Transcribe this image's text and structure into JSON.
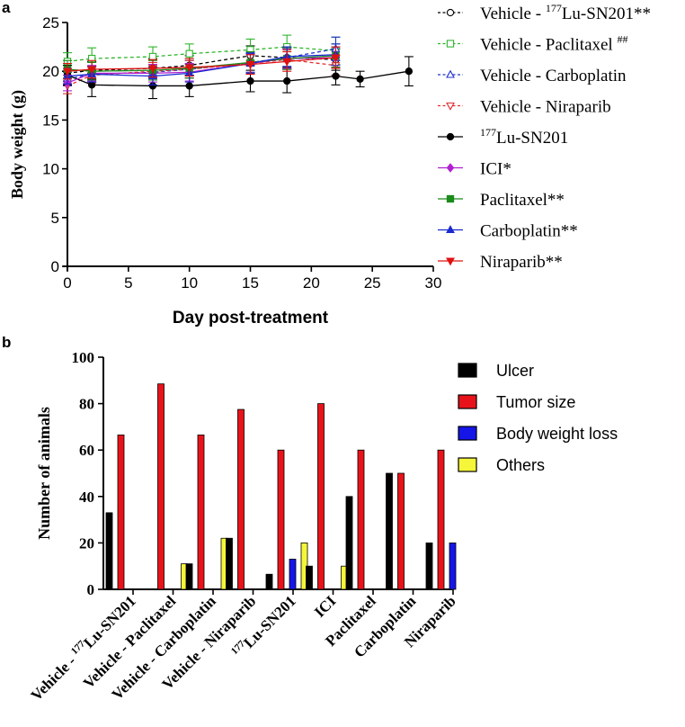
{
  "panel_a_label": "a",
  "panel_b_label": "b",
  "chart_data": [
    {
      "type": "line",
      "title": "",
      "xlabel": "Day post-treatment",
      "ylabel": "Body weight (g)",
      "xlim": [
        0,
        30
      ],
      "ylim": [
        0,
        25
      ],
      "xticks": [
        0,
        5,
        10,
        15,
        20,
        25,
        30
      ],
      "yticks": [
        0,
        5,
        10,
        15,
        20,
        25
      ],
      "grid": false,
      "legend_position": "right",
      "series": [
        {
          "name": "Vehicle - ",
          "sup": "177",
          "name_tail": "Lu-SN201**",
          "color": "#000000",
          "dashed": true,
          "marker": "circle-open",
          "x": [
            0,
            2,
            7,
            10,
            15,
            18,
            22
          ],
          "y": [
            19.8,
            20.1,
            20.3,
            20.6,
            21.6,
            21.4,
            21.2
          ],
          "err": [
            0.8,
            0.9,
            1.0,
            1.0,
            1.0,
            1.0,
            1.1
          ]
        },
        {
          "name": "Vehicle - Paclitaxel ",
          "sup": "##",
          "name_tail": "",
          "color": "#2db52d",
          "dashed": true,
          "marker": "square-open",
          "x": [
            0,
            2,
            7,
            10,
            15,
            18,
            22
          ],
          "y": [
            21.0,
            21.3,
            21.5,
            21.8,
            22.2,
            22.5,
            22.1
          ],
          "err": [
            0.9,
            1.1,
            1.0,
            1.0,
            1.1,
            1.2,
            1.4
          ]
        },
        {
          "name": "Vehicle - Carboplatin",
          "sup": "",
          "name_tail": "",
          "color": "#2233cc",
          "dashed": true,
          "marker": "triangle-open",
          "x": [
            0,
            2,
            7,
            10,
            15,
            18,
            22
          ],
          "y": [
            19.2,
            19.7,
            19.9,
            20.2,
            20.9,
            21.4,
            22.3
          ],
          "err": [
            0.7,
            0.8,
            0.8,
            0.9,
            1.0,
            1.1,
            1.2
          ]
        },
        {
          "name": "Vehicle - Niraparib",
          "sup": "",
          "name_tail": "",
          "color": "#e03030",
          "dashed": true,
          "marker": "triangle-down-open",
          "x": [
            0,
            2,
            7,
            10,
            15,
            18,
            22
          ],
          "y": [
            18.5,
            19.6,
            20.0,
            20.2,
            20.8,
            21.2,
            20.6
          ],
          "err": [
            0.8,
            0.8,
            0.9,
            0.9,
            1.0,
            1.0,
            1.0
          ]
        },
        {
          "name": "",
          "sup": "177",
          "name_tail": "Lu-SN201",
          "color": "#000000",
          "dashed": false,
          "marker": "circle",
          "x": [
            0,
            2,
            7,
            10,
            15,
            18,
            22,
            24,
            28
          ],
          "y": [
            19.6,
            18.6,
            18.5,
            18.5,
            19.0,
            19.0,
            19.5,
            19.2,
            20.0
          ],
          "err": [
            1.0,
            1.2,
            1.3,
            1.1,
            1.1,
            1.2,
            0.9,
            0.8,
            1.5
          ]
        },
        {
          "name": "ICI*",
          "sup": "",
          "name_tail": "",
          "color": "#b020d0",
          "dashed": false,
          "marker": "diamond",
          "x": [
            0,
            2,
            7,
            10,
            15,
            18,
            22
          ],
          "y": [
            18.8,
            19.8,
            19.8,
            19.9,
            20.8,
            21.3,
            21.4
          ],
          "err": [
            0.8,
            0.8,
            0.9,
            0.9,
            1.0,
            1.0,
            1.1
          ]
        },
        {
          "name": "Paclitaxel**",
          "sup": "",
          "name_tail": "",
          "color": "#1a8a1a",
          "dashed": false,
          "marker": "square",
          "x": [
            0,
            2,
            7,
            10,
            15,
            18,
            22
          ],
          "y": [
            20.2,
            20.0,
            20.1,
            20.3,
            20.9,
            21.3,
            21.6
          ],
          "err": [
            0.9,
            0.9,
            1.0,
            1.0,
            1.1,
            1.1,
            1.2
          ]
        },
        {
          "name": "Carboplatin**",
          "sup": "",
          "name_tail": "",
          "color": "#1a2ad0",
          "dashed": false,
          "marker": "triangle",
          "x": [
            0,
            2,
            7,
            10,
            15,
            18,
            22
          ],
          "y": [
            19.5,
            19.7,
            19.5,
            19.8,
            20.8,
            21.5,
            21.7
          ],
          "err": [
            0.8,
            0.8,
            0.9,
            0.9,
            1.0,
            1.0,
            1.1
          ]
        },
        {
          "name": "Niraparib**",
          "sup": "",
          "name_tail": "",
          "color": "#e01010",
          "dashed": false,
          "marker": "triangle-down",
          "x": [
            0,
            2,
            7,
            10,
            15,
            18,
            22
          ],
          "y": [
            20.0,
            20.2,
            20.3,
            20.4,
            20.7,
            21.0,
            21.4
          ],
          "err": [
            0.8,
            0.9,
            0.9,
            0.9,
            1.0,
            1.0,
            1.1
          ]
        }
      ]
    },
    {
      "type": "bar",
      "title": "",
      "xlabel": "",
      "ylabel": "Number of animals",
      "ylim": [
        0,
        100
      ],
      "yticks": [
        0,
        20,
        40,
        60,
        80,
        100
      ],
      "grid": false,
      "legend_position": "right",
      "categories": [
        {
          "pre": "Vehicle - ",
          "sup": "177",
          "post": "Lu-SN201"
        },
        {
          "pre": "Vehicle - Paclitaxel",
          "sup": "",
          "post": ""
        },
        {
          "pre": "Vehicle - Carboplatin",
          "sup": "",
          "post": ""
        },
        {
          "pre": "Vehicle - Niraparib",
          "sup": "",
          "post": ""
        },
        {
          "pre": "",
          "sup": "177",
          "post": "Lu-SN201"
        },
        {
          "pre": "ICI",
          "sup": "",
          "post": ""
        },
        {
          "pre": "Paclitaxel",
          "sup": "",
          "post": ""
        },
        {
          "pre": "Carboplatin",
          "sup": "",
          "post": ""
        },
        {
          "pre": "Niraparib",
          "sup": "",
          "post": ""
        }
      ],
      "series": [
        {
          "name": "Ulcer",
          "color": "#000000",
          "values": [
            33,
            0,
            11,
            22,
            6.5,
            10,
            40,
            50,
            20
          ]
        },
        {
          "name": "Tumor size",
          "color": "#e8131a",
          "values": [
            66.5,
            88.5,
            66.5,
            77.5,
            60,
            80,
            60,
            50,
            60
          ]
        },
        {
          "name": "Body weight loss",
          "color": "#1515e8",
          "values": [
            0,
            0,
            0,
            0,
            13,
            0,
            0,
            0,
            20
          ]
        },
        {
          "name": "Others",
          "color": "#f5f53a",
          "values": [
            0,
            11,
            22,
            0,
            20,
            10,
            0,
            0,
            0
          ]
        }
      ]
    }
  ]
}
